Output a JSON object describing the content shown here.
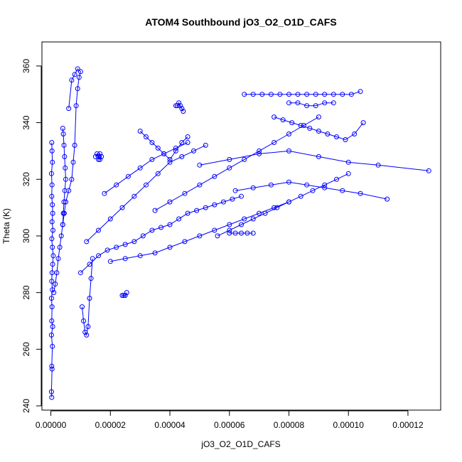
{
  "chart_data": {
    "type": "scatter",
    "title": "ATOM4 Southbound jO3_O2_O1D_CAFS",
    "xlabel": "jO3_O2_O1D_CAFS",
    "ylabel": "Theta (K)",
    "xlim": [
      -3e-06,
      0.000131
    ],
    "ylim": [
      238.5,
      368.5
    ],
    "x_ticks": [
      0,
      2e-05,
      4e-05,
      6e-05,
      8e-05,
      0.0001,
      0.00012
    ],
    "x_tick_labels": [
      "0.00000",
      "0.00002",
      "0.00004",
      "0.00006",
      "0.00008",
      "0.00010",
      "0.00012"
    ],
    "y_ticks": [
      240,
      260,
      280,
      300,
      320,
      340,
      360
    ],
    "y_tick_labels": [
      "240",
      "260",
      "280",
      "300",
      "320",
      "340",
      "360"
    ],
    "grid": false,
    "color": "#0000ff",
    "markers": "open-circle",
    "connected": true,
    "series": [
      {
        "x": [
          3e-07,
          2e-07,
          4e-07,
          3e-07,
          5e-07,
          2e-07,
          6e-07,
          3e-07,
          4e-07,
          2e-07,
          5e-07,
          3e-07,
          4e-07,
          6e-07,
          8e-07,
          5e-07,
          3e-07,
          7e-07,
          4e-07,
          6e-07,
          5e-07,
          3e-07,
          4e-07,
          2e-07,
          5e-07,
          4e-07,
          3e-07
        ],
        "y": [
          243,
          245,
          253,
          254,
          261,
          265,
          268,
          270,
          275,
          278,
          281,
          284,
          287,
          290,
          293,
          296,
          299,
          302,
          305,
          308,
          311,
          314,
          318,
          322,
          326,
          330,
          333
        ]
      },
      {
        "x": [
          1e-06,
          1.5e-06,
          2e-06,
          2.5e-06,
          3e-06,
          3.5e-06,
          4e-06,
          4.5e-06,
          5e-06,
          6e-06,
          7e-06,
          7.5e-06,
          8e-06,
          8.5e-06,
          9e-06,
          9.5e-06,
          1e-05,
          9e-06,
          8e-06,
          7e-06,
          6e-06
        ],
        "y": [
          280,
          283,
          287,
          292,
          296,
          300,
          304,
          308,
          312,
          316,
          320,
          326,
          332,
          346,
          352,
          356,
          358,
          359,
          357,
          355,
          345
        ]
      },
      {
        "x": [
          4e-06,
          4.2e-06,
          4.4e-06,
          4.6e-06,
          4.8e-06,
          5e-06,
          4.7e-06,
          4.4e-06,
          4.2e-06,
          4e-06
        ],
        "y": [
          338,
          336,
          332,
          328,
          324,
          320,
          316,
          312,
          308,
          304
        ]
      },
      {
        "x": [
          1.05e-05,
          1.1e-05,
          1.15e-05,
          1.2e-05,
          1.25e-05,
          1.3e-05,
          1.35e-05,
          1.4e-05
        ],
        "y": [
          275,
          270,
          266,
          265,
          268,
          278,
          285,
          292
        ]
      },
      {
        "x": [
          1.5e-05,
          1.55e-05,
          1.6e-05,
          1.65e-05,
          1.7e-05,
          1.65e-05,
          1.6e-05
        ],
        "y": [
          328,
          329,
          328,
          327,
          328,
          329,
          327
        ]
      },
      {
        "x": [
          1e-05,
          1.3e-05,
          1.6e-05,
          1.9e-05,
          2.2e-05,
          2.5e-05,
          2.8e-05,
          3.1e-05,
          3.4e-05,
          3.7e-05,
          4e-05,
          4.3e-05,
          4.6e-05,
          4.9e-05,
          5.2e-05,
          5.5e-05,
          5.8e-05,
          6.1e-05,
          6.4e-05
        ],
        "y": [
          287,
          290,
          293,
          295,
          296,
          297,
          298,
          300,
          302,
          303,
          304,
          306,
          308,
          309,
          310,
          311,
          312,
          313,
          314
        ]
      },
      {
        "x": [
          1.2e-05,
          1.6e-05,
          2e-05,
          2.4e-05,
          2.8e-05,
          3.2e-05,
          3.6e-05,
          4e-05,
          4.4e-05,
          4.8e-05,
          5.2e-05
        ],
        "y": [
          298,
          302,
          306,
          310,
          314,
          318,
          322,
          326,
          328,
          330,
          332
        ]
      },
      {
        "x": [
          2.4e-05,
          2.45e-05,
          2.5e-05,
          2.55e-05
        ],
        "y": [
          279,
          279,
          279,
          280
        ]
      },
      {
        "x": [
          1.8e-05,
          2.2e-05,
          2.6e-05,
          3e-05,
          3.4e-05,
          3.8e-05,
          4.2e-05,
          4.6e-05
        ],
        "y": [
          315,
          318,
          321,
          324,
          327,
          329,
          331,
          333
        ]
      },
      {
        "x": [
          3e-05,
          3.2e-05,
          3.4e-05,
          3.6e-05,
          3.8e-05,
          4e-05,
          4.2e-05,
          4.4e-05,
          4.6e-05
        ],
        "y": [
          337,
          335,
          333,
          331,
          329,
          327,
          330,
          333,
          335
        ]
      },
      {
        "x": [
          4.2e-05,
          4.25e-05,
          4.3e-05,
          4.35e-05,
          4.4e-05,
          4.45e-05
        ],
        "y": [
          346,
          346,
          347,
          346,
          345,
          344
        ]
      },
      {
        "x": [
          5.6e-05,
          6e-05,
          6.4e-05,
          6.8e-05,
          7.2e-05,
          7.6e-05,
          8e-05,
          8.4e-05,
          8.8e-05,
          9.2e-05,
          9.6e-05,
          0.0001
        ],
        "y": [
          300,
          302,
          304,
          306,
          308,
          310,
          312,
          314,
          316,
          318,
          320,
          322
        ]
      },
      {
        "x": [
          6e-05,
          6.2e-05,
          6.4e-05,
          6.6e-05,
          6.8e-05
        ],
        "y": [
          301,
          301,
          301,
          301,
          301
        ]
      },
      {
        "x": [
          6.5e-05,
          6.8e-05,
          7.1e-05,
          7.4e-05,
          7.7e-05,
          8e-05,
          8.3e-05,
          8.6e-05,
          8.9e-05,
          9.2e-05,
          9.5e-05,
          9.8e-05,
          0.000101,
          0.000104
        ],
        "y": [
          350,
          350,
          350,
          350,
          350,
          350,
          350,
          350,
          350,
          350,
          350,
          350,
          350,
          351
        ]
      },
      {
        "x": [
          7.5e-05,
          7.8e-05,
          8.1e-05,
          8.4e-05,
          8.7e-05,
          9e-05,
          9.3e-05,
          9.6e-05,
          9.9e-05,
          0.000102,
          0.000105
        ],
        "y": [
          342,
          341,
          340,
          339,
          338,
          337,
          336,
          335,
          334,
          336,
          340
        ]
      },
      {
        "x": [
          5e-05,
          6e-05,
          7e-05,
          8e-05,
          9e-05,
          0.0001,
          0.00011,
          0.000127
        ],
        "y": [
          325,
          327,
          329,
          330,
          328,
          326,
          325,
          323
        ]
      },
      {
        "x": [
          6.2e-05,
          6.8e-05,
          7.4e-05,
          8e-05,
          8.6e-05,
          9.2e-05,
          9.8e-05,
          0.000104,
          0.000113
        ],
        "y": [
          316,
          317,
          318,
          319,
          318,
          317,
          316,
          315,
          313
        ]
      },
      {
        "x": [
          8e-05,
          8.3e-05,
          8.6e-05,
          8.9e-05,
          9.2e-05,
          9.5e-05
        ],
        "y": [
          347,
          347,
          346,
          346,
          347,
          347
        ]
      },
      {
        "x": [
          3.5e-05,
          4e-05,
          4.5e-05,
          5e-05,
          5.5e-05,
          6e-05,
          6.5e-05,
          7e-05,
          7.5e-05,
          8e-05,
          8.5e-05,
          9e-05
        ],
        "y": [
          309,
          312,
          315,
          318,
          321,
          324,
          327,
          330,
          333,
          336,
          339,
          342
        ]
      },
      {
        "x": [
          2e-05,
          2.5e-05,
          3e-05,
          3.5e-05,
          4e-05,
          4.5e-05,
          5e-05,
          5.5e-05,
          6e-05,
          6.5e-05,
          7e-05,
          7.5e-05,
          8e-05
        ],
        "y": [
          291,
          292,
          293,
          294,
          296,
          298,
          300,
          302,
          304,
          306,
          308,
          310,
          312
        ]
      }
    ]
  }
}
